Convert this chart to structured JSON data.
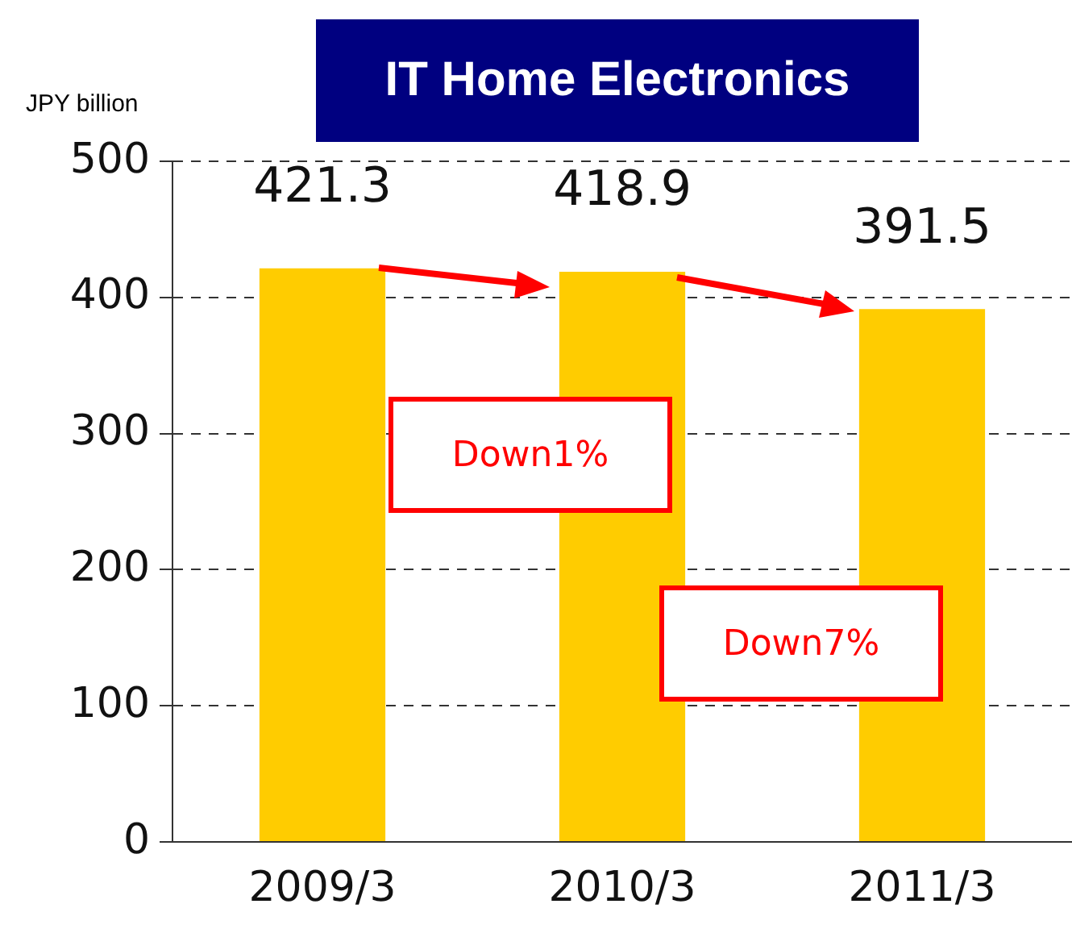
{
  "chart_data": {
    "type": "bar",
    "title": "IT Home Electronics",
    "ylabel": "JPY billion",
    "categories": [
      "2009/3",
      "2010/3",
      "2011/3"
    ],
    "values": [
      421.3,
      418.9,
      391.5
    ],
    "color": "#ffcc00",
    "ylim": [
      0,
      500
    ],
    "yticks": [
      0,
      100,
      200,
      300,
      400,
      500
    ],
    "grid": "y",
    "legend": false,
    "data_labels": true,
    "annotations": [
      "Down1%",
      "Down7%"
    ]
  }
}
